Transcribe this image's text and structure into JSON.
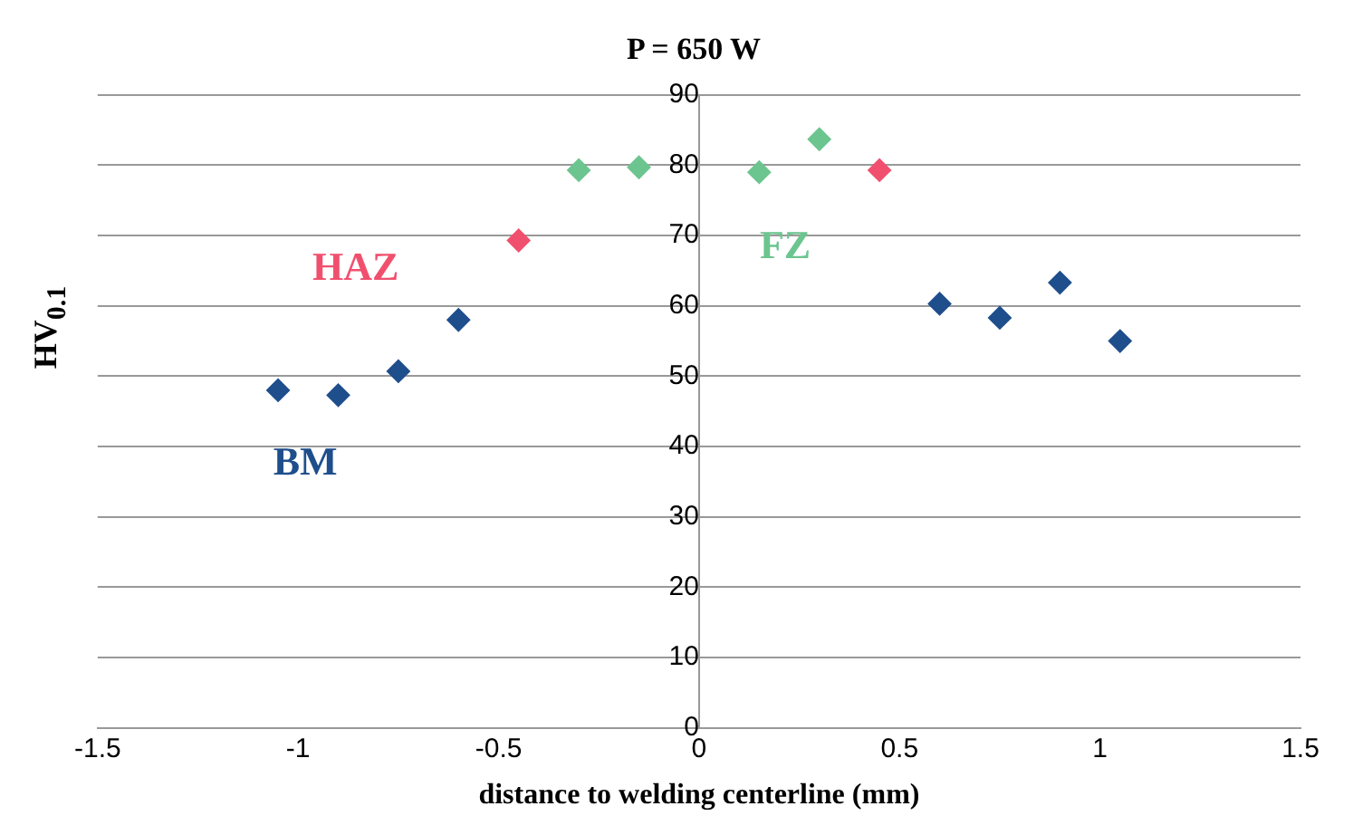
{
  "chart_data": {
    "type": "scatter",
    "title": "P = 650 W",
    "xlabel": "distance to welding centerline (mm)",
    "ylabel": "HV$_{0.1}$",
    "series": [
      {
        "name": "BM",
        "color": "#1f4e8c",
        "x": [
          -1.05,
          -0.9,
          -0.75,
          -0.6,
          0.6,
          0.75,
          0.9,
          1.05
        ],
        "values": [
          48,
          47.3,
          50.7,
          58,
          60.3,
          58.3,
          63.3,
          55
        ]
      },
      {
        "name": "HAZ",
        "color": "#f0506e",
        "x": [
          -0.45,
          0.45
        ],
        "values": [
          69.3,
          79.3
        ]
      },
      {
        "name": "FZ",
        "color": "#6cc58f",
        "x": [
          -0.3,
          -0.15,
          0.15,
          0.3
        ],
        "values": [
          79.3,
          79.7,
          79,
          83.7
        ]
      }
    ],
    "xlim": [
      -1.5,
      1.5
    ],
    "xticks": [
      -1.5,
      -1,
      -0.5,
      0,
      0.5,
      1,
      1.5
    ],
    "ylim": [
      0,
      90
    ],
    "yticks": [
      0,
      10,
      20,
      30,
      40,
      50,
      60,
      70,
      80,
      90
    ],
    "grid": "y",
    "legend": false,
    "marker": "diamond"
  }
}
